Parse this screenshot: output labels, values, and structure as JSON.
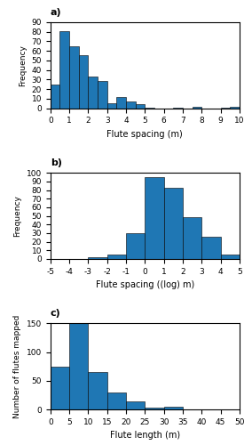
{
  "chart_data": [
    {
      "type": "histogram",
      "title": "a)",
      "bins": [
        0,
        0.5,
        1.0,
        1.5,
        2.0,
        2.5,
        3.0,
        3.5,
        4.0,
        4.5,
        5.0,
        5.5,
        6.0,
        6.5,
        7.0,
        7.5,
        8.0,
        8.5,
        9.0,
        9.5,
        10.0
      ],
      "values": [
        25,
        81,
        65,
        56,
        33,
        29,
        5,
        12,
        7,
        4,
        1,
        0,
        0,
        1,
        0,
        2,
        0,
        0,
        1,
        2
      ],
      "x_label": "Flute spacing (m)",
      "y_label": "Frequency",
      "xlim": [
        0,
        10
      ],
      "ylim": [
        0,
        90
      ],
      "xticks": [
        0,
        1,
        2,
        3,
        4,
        5,
        6,
        7,
        8,
        9,
        10
      ],
      "yticks": [
        0,
        10,
        20,
        30,
        40,
        50,
        60,
        70,
        80,
        90
      ]
    },
    {
      "type": "histogram",
      "title": "b)",
      "bins": [
        -5,
        -4,
        -3,
        -2,
        -1,
        0,
        1,
        2,
        3,
        4,
        5
      ],
      "values": [
        0,
        0,
        2,
        5,
        30,
        95,
        83,
        48,
        26,
        5
      ],
      "x_label": "Flute spacing ((log) m)",
      "y_label": "Frequency",
      "xlim": [
        -5,
        5
      ],
      "ylim": [
        0,
        100
      ],
      "xticks": [
        -5,
        -4,
        -3,
        -2,
        -1,
        0,
        1,
        2,
        3,
        4,
        5
      ],
      "yticks": [
        0,
        10,
        20,
        30,
        40,
        50,
        60,
        70,
        80,
        90,
        100
      ]
    },
    {
      "type": "histogram",
      "title": "c)",
      "bins": [
        0,
        5,
        10,
        15,
        20,
        25,
        30,
        35,
        40,
        45,
        50
      ],
      "values": [
        75,
        150,
        65,
        30,
        14,
        3,
        4,
        0,
        0,
        0
      ],
      "x_label": "Flute length (m)",
      "y_label": "Number of flutes mapped",
      "xlim": [
        0,
        50
      ],
      "ylim": [
        0,
        150
      ],
      "xticks": [
        0,
        5,
        10,
        15,
        20,
        25,
        30,
        35,
        40,
        45,
        50
      ],
      "yticks": [
        0,
        50,
        100,
        150
      ]
    }
  ]
}
